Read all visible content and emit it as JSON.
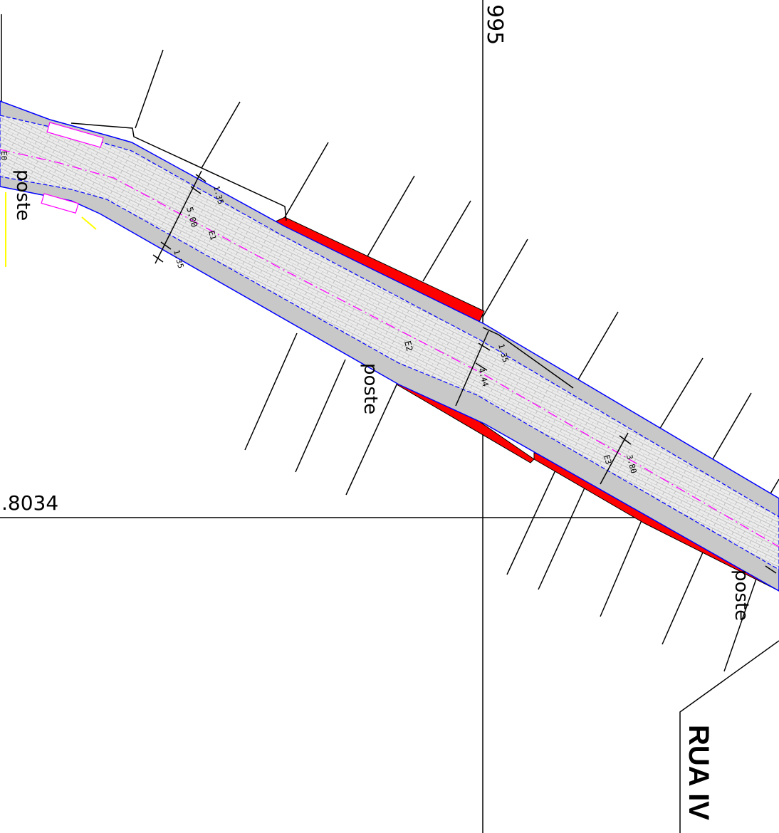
{
  "grid_labels": {
    "vertical_line": "995",
    "horizontal_line": ".8034"
  },
  "annotations": {
    "poste": "poste"
  },
  "dimensions": {
    "section_1": {
      "left_sidewalk": "1.35",
      "roadway": "5.00",
      "right_sidewalk": "1.35",
      "marker": "E1"
    },
    "section_2": {
      "marker": "E2",
      "left_sidewalk": "1.35",
      "roadway": "4.44"
    },
    "section_3": {
      "roadway": "3.80",
      "marker": "E3"
    },
    "section_0": {
      "marker": "E0"
    }
  },
  "street_name": "RUA IV",
  "colors": {
    "sidewalk": "#c8c8c8",
    "paving": "#e6e6e6",
    "edge_line": "#0000ff",
    "centerline": "#ff00ff",
    "cut_fill": "#ff0000",
    "highlight": "#ffff00"
  }
}
